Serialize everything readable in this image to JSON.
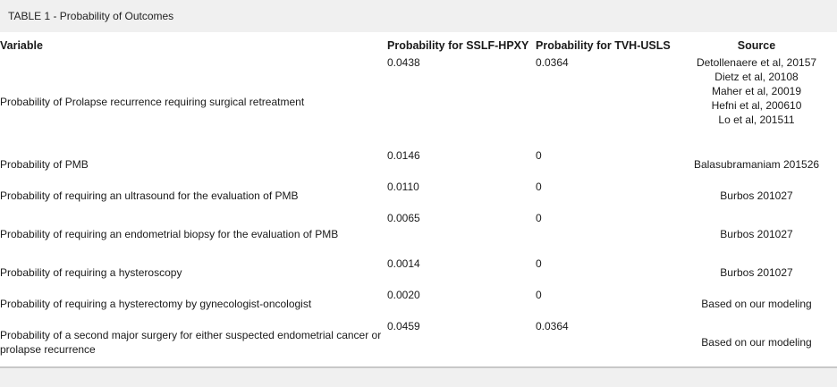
{
  "title": "TABLE 1 - Probability of Outcomes",
  "headers": {
    "variable": "Variable",
    "prob_sslf": "Probability for SSLF-HPXY",
    "prob_tvh": "Probability for TVH-USLS",
    "source": "Source"
  },
  "rows": [
    {
      "variable": "Probability of Prolapse recurrence requiring surgical retreatment",
      "prob_sslf": "0.0438",
      "prob_tvh": "0.0364",
      "source": [
        "Detollenaere et al, 20157",
        "Dietz et al, 20108",
        "Maher et al, 20019",
        "Hefni et al, 200610",
        "Lo et al, 201511"
      ]
    },
    {
      "variable": "Probability of PMB",
      "prob_sslf": "0.0146",
      "prob_tvh": "0",
      "source": [
        "Balasubramaniam 201526"
      ]
    },
    {
      "variable": "Probability of requiring an ultrasound for the evaluation of PMB",
      "prob_sslf": "0.0110",
      "prob_tvh": "0",
      "source": [
        "Burbos 201027"
      ]
    },
    {
      "variable": "Probability of requiring an endometrial biopsy for the evaluation of PMB",
      "prob_sslf": "0.0065",
      "prob_tvh": "0",
      "source": [
        "Burbos 201027"
      ]
    },
    {
      "variable": "Probability of requiring a hysteroscopy",
      "prob_sslf": "0.0014",
      "prob_tvh": "0",
      "source": [
        "Burbos 201027"
      ]
    },
    {
      "variable": "Probability of requiring a hysterectomy by gynecologist-oncologist",
      "prob_sslf": "0.0020",
      "prob_tvh": "0",
      "source": [
        "Based on our modeling"
      ]
    },
    {
      "variable": "Probability of a second major surgery for either suspected endometrial cancer or prolapse recurrence",
      "prob_sslf": "0.0459",
      "prob_tvh": "0.0364",
      "source": [
        "Based on our modeling"
      ]
    }
  ]
}
